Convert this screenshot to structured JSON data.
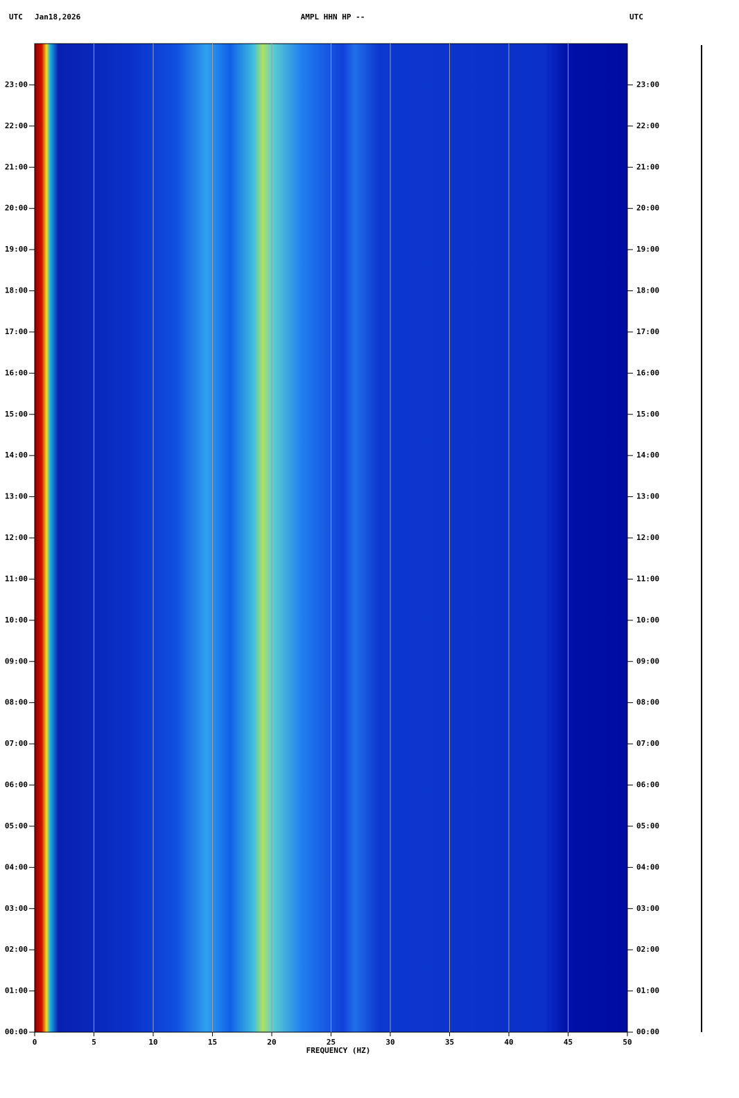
{
  "chart_data": {
    "type": "spectrogram",
    "time_zone": "UTC",
    "date": "Jan18,2026",
    "title": "AMPL HHN HP --",
    "right_label": "UTC",
    "xlabel": "FREQUENCY (HZ)",
    "xlim": [
      0,
      50
    ],
    "xticks": [
      0,
      5,
      10,
      15,
      20,
      25,
      30,
      35,
      40,
      45,
      50
    ],
    "ylim": [
      0,
      24
    ],
    "yticks": [
      {
        "value": 0,
        "label": "00:00"
      },
      {
        "value": 1,
        "label": "01:00"
      },
      {
        "value": 2,
        "label": "02:00"
      },
      {
        "value": 3,
        "label": "03:00"
      },
      {
        "value": 4,
        "label": "04:00"
      },
      {
        "value": 5,
        "label": "05:00"
      },
      {
        "value": 6,
        "label": "06:00"
      },
      {
        "value": 7,
        "label": "07:00"
      },
      {
        "value": 8,
        "label": "08:00"
      },
      {
        "value": 9,
        "label": "09:00"
      },
      {
        "value": 10,
        "label": "10:00"
      },
      {
        "value": 11,
        "label": "11:00"
      },
      {
        "value": 12,
        "label": "12:00"
      },
      {
        "value": 13,
        "label": "13:00"
      },
      {
        "value": 14,
        "label": "14:00"
      },
      {
        "value": 15,
        "label": "15:00"
      },
      {
        "value": 16,
        "label": "16:00"
      },
      {
        "value": 17,
        "label": "17:00"
      },
      {
        "value": 18,
        "label": "18:00"
      },
      {
        "value": 19,
        "label": "19:00"
      },
      {
        "value": 20,
        "label": "20:00"
      },
      {
        "value": 21,
        "label": "21:00"
      },
      {
        "value": 22,
        "label": "22:00"
      },
      {
        "value": 23,
        "label": "23:00"
      }
    ],
    "grid": true
  }
}
